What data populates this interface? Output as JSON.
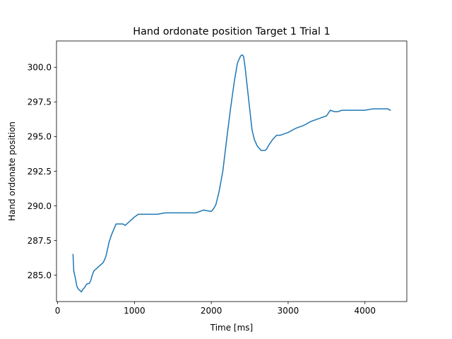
{
  "chart_data": {
    "type": "line",
    "title": "Hand ordonate position Target 1 Trial 1",
    "xlabel": "Time [ms]",
    "ylabel": "Hand ordonate position",
    "xlim": [
      -15,
      4545
    ],
    "ylim": [
      283.1,
      301.9
    ],
    "xticks": [
      0,
      1000,
      2000,
      3000,
      4000
    ],
    "xtick_labels": [
      "0",
      "1000",
      "2000",
      "3000",
      "4000"
    ],
    "yticks": [
      285.0,
      287.5,
      290.0,
      292.5,
      295.0,
      297.5,
      300.0
    ],
    "ytick_labels": [
      "285.0",
      "287.5",
      "290.0",
      "292.5",
      "295.0",
      "297.5",
      "300.0"
    ],
    "grid": false,
    "series": [
      {
        "color": "#1f77b4",
        "x": [
          200,
          210,
          230,
          250,
          270,
          290,
          310,
          330,
          350,
          370,
          390,
          410,
          430,
          450,
          470,
          490,
          510,
          530,
          550,
          570,
          590,
          610,
          630,
          650,
          670,
          700,
          730,
          760,
          790,
          820,
          850,
          880,
          920,
          960,
          1000,
          1050,
          1100,
          1200,
          1300,
          1400,
          1500,
          1600,
          1700,
          1800,
          1900,
          2000,
          2030,
          2060,
          2100,
          2150,
          2200,
          2250,
          2300,
          2340,
          2380,
          2400,
          2420,
          2440,
          2470,
          2500,
          2530,
          2560,
          2600,
          2650,
          2700,
          2720,
          2750,
          2800,
          2850,
          2900,
          3000,
          3100,
          3200,
          3300,
          3400,
          3500,
          3550,
          3600,
          3650,
          3700,
          3800,
          3900,
          4000,
          4100,
          4200,
          4300,
          4330
        ],
        "y": [
          286.5,
          285.3,
          284.8,
          284.2,
          284.0,
          283.9,
          283.8,
          284.0,
          284.1,
          284.3,
          284.4,
          284.4,
          284.6,
          285.0,
          285.3,
          285.4,
          285.5,
          285.6,
          285.7,
          285.8,
          285.9,
          286.1,
          286.4,
          286.9,
          287.4,
          287.9,
          288.3,
          288.7,
          288.7,
          288.7,
          288.7,
          288.6,
          288.8,
          289.0,
          289.2,
          289.4,
          289.4,
          289.4,
          289.4,
          289.5,
          289.5,
          289.5,
          289.5,
          289.5,
          289.7,
          289.6,
          289.8,
          290.1,
          291.0,
          292.5,
          294.8,
          297.0,
          299.0,
          300.3,
          300.8,
          300.9,
          300.8,
          300.0,
          298.5,
          297.0,
          295.5,
          294.8,
          294.3,
          294.0,
          294.0,
          294.1,
          294.4,
          294.8,
          295.1,
          295.1,
          295.3,
          295.6,
          295.8,
          296.1,
          296.3,
          296.5,
          296.9,
          296.8,
          296.8,
          296.9,
          296.9,
          296.9,
          296.9,
          297.0,
          297.0,
          297.0,
          296.9
        ]
      }
    ]
  }
}
